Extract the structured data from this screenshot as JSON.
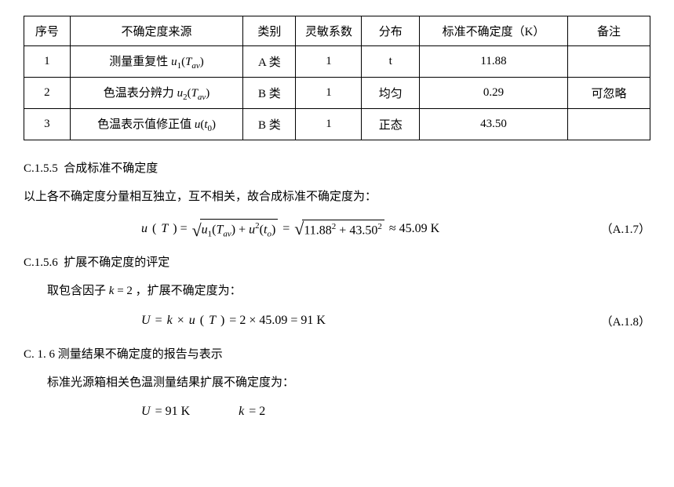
{
  "table": {
    "headers": {
      "seq": "序号",
      "source": "不确定度来源",
      "category": "类别",
      "sensitivity": "灵敏系数",
      "distribution": "分布",
      "std_uncert": "标准不确定度（K）",
      "note": "备注"
    },
    "rows": [
      {
        "seq": "1",
        "source_prefix": "测量重复性 ",
        "source_sym": "u",
        "source_sub1": "1",
        "source_arg": "T",
        "source_argsub": "av",
        "category": "A 类",
        "sensitivity": "1",
        "distribution": "t",
        "std_uncert": "11.88",
        "note": ""
      },
      {
        "seq": "2",
        "source_prefix": "色温表分辨力 ",
        "source_sym": "u",
        "source_sub1": "2",
        "source_arg": "T",
        "source_argsub": "av",
        "category": "B 类",
        "sensitivity": "1",
        "distribution": "均匀",
        "std_uncert": "0.29",
        "note": "可忽略"
      },
      {
        "seq": "3",
        "source_prefix": "色温表示值修正值 ",
        "source_sym": "u",
        "source_sub1": "",
        "source_arg": "t",
        "source_argsub": "0",
        "category": "B 类",
        "sensitivity": "1",
        "distribution": "正态",
        "std_uncert": "43.50",
        "note": ""
      }
    ],
    "border_color": "#000000",
    "background_color": "#ffffff"
  },
  "sections": {
    "c155_num": "C.1.5.5",
    "c155_title": "合成标准不确定度",
    "c155_para": "以上各不确定度分量相互独立，互不相关，故合成标准不确定度为：",
    "c156_num": "C.1.5.6",
    "c156_title": "扩展不确定度的评定",
    "c156_para_pre": "取包含因子 ",
    "c156_para_mid": " = 2 ，扩展不确定度为：",
    "c16_num": "C. 1. 6",
    "c16_title": "测量结果不确定度的报告与表示",
    "c16_para": "标准光源箱相关色温测量结果扩展不确定度为："
  },
  "formulas": {
    "f1": {
      "lhs_u": "u",
      "lhs_arg": "T",
      "sq1_u1": "u",
      "sq1_sub1": "1",
      "sq1_arg1": "T",
      "sq1_argsub1": "av",
      "sq1_plus": " + ",
      "sq1_u2": "u",
      "sq1_sup2": "2",
      "sq1_arg2": "t",
      "sq1_argsub2": "o",
      "sq2_a": "11.88",
      "sq2_b": "43.50",
      "approx": " ≈ 45.09 K",
      "tag": "（A.1.7）"
    },
    "f2": {
      "text": "U = k × u(T) = 2 × 45.09 = 91 K",
      "U": "U",
      "eq1": " = ",
      "k": "k",
      "times": " × ",
      "u": "u",
      "argT": "T",
      "eq2": " = 2 × 45.09 = 91 K",
      "tag": "（A.1.8）"
    },
    "f3": {
      "U": "U",
      "Uval": " = 91 K",
      "k": "k",
      "kval": " = 2"
    }
  },
  "style": {
    "font_body": "SimSun",
    "font_math": "Times New Roman",
    "text_color": "#000000",
    "bg_color": "#ffffff"
  }
}
